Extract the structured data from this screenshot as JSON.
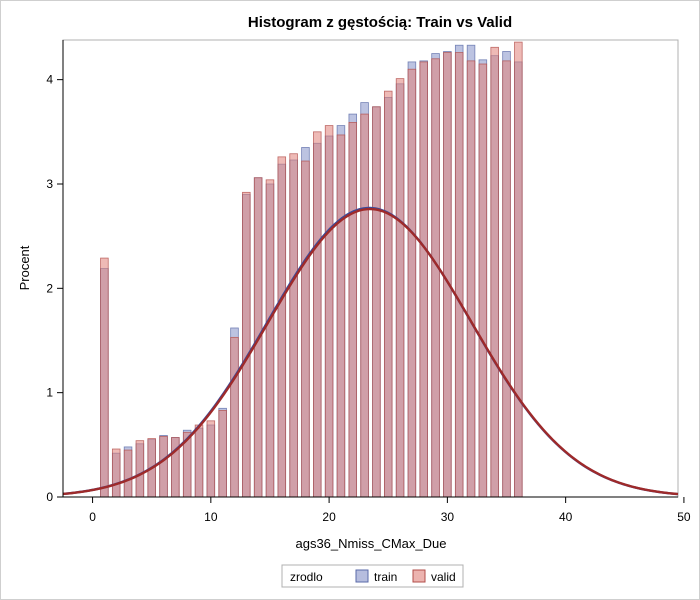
{
  "chart_data": {
    "type": "histogram_with_density",
    "title": "Histogram z gęstością: Train vs Valid",
    "xlabel": "ags36_Nmiss_CMax_Due",
    "ylabel": "Procent",
    "xlim": [
      -2.5,
      49.5
    ],
    "ylim": [
      0,
      4.38
    ],
    "xticks": [
      0,
      10,
      20,
      30,
      40,
      50
    ],
    "yticks": [
      0,
      1,
      2,
      3,
      4
    ],
    "grid": false,
    "legend": {
      "title": "zrodlo",
      "placement": "bottom-center"
    },
    "bin_width": 1,
    "bar_width": 0.65,
    "series": [
      {
        "name": "train",
        "color": "#8591c8",
        "bins": [
          {
            "x": 1,
            "y": 2.19
          },
          {
            "x": 2,
            "y": 0.42
          },
          {
            "x": 3,
            "y": 0.48
          },
          {
            "x": 4,
            "y": 0.51
          },
          {
            "x": 5,
            "y": 0.55
          },
          {
            "x": 6,
            "y": 0.59
          },
          {
            "x": 7,
            "y": 0.57
          },
          {
            "x": 8,
            "y": 0.64
          },
          {
            "x": 9,
            "y": 0.66
          },
          {
            "x": 10,
            "y": 0.69
          },
          {
            "x": 11,
            "y": 0.85
          },
          {
            "x": 12,
            "y": 1.62
          },
          {
            "x": 13,
            "y": 2.9
          },
          {
            "x": 14,
            "y": 3.06
          },
          {
            "x": 15,
            "y": 3.0
          },
          {
            "x": 16,
            "y": 3.19
          },
          {
            "x": 17,
            "y": 3.23
          },
          {
            "x": 18,
            "y": 3.35
          },
          {
            "x": 19,
            "y": 3.39
          },
          {
            "x": 20,
            "y": 3.46
          },
          {
            "x": 21,
            "y": 3.56
          },
          {
            "x": 22,
            "y": 3.67
          },
          {
            "x": 23,
            "y": 3.78
          },
          {
            "x": 24,
            "y": 3.74
          },
          {
            "x": 25,
            "y": 3.83
          },
          {
            "x": 26,
            "y": 3.96
          },
          {
            "x": 27,
            "y": 4.17
          },
          {
            "x": 28,
            "y": 4.18
          },
          {
            "x": 29,
            "y": 4.25
          },
          {
            "x": 30,
            "y": 4.27
          },
          {
            "x": 31,
            "y": 4.33
          },
          {
            "x": 32,
            "y": 4.33
          },
          {
            "x": 33,
            "y": 4.19
          },
          {
            "x": 34,
            "y": 4.23
          },
          {
            "x": 35,
            "y": 4.27
          },
          {
            "x": 36,
            "y": 4.17
          }
        ],
        "density": {
          "type": "normal",
          "mu": 23.4,
          "sigma": 8.6,
          "peak": 2.77
        }
      },
      {
        "name": "valid",
        "color": "#e0817a",
        "bins": [
          {
            "x": 1,
            "y": 2.29
          },
          {
            "x": 2,
            "y": 0.46
          },
          {
            "x": 3,
            "y": 0.45
          },
          {
            "x": 4,
            "y": 0.54
          },
          {
            "x": 5,
            "y": 0.56
          },
          {
            "x": 6,
            "y": 0.58
          },
          {
            "x": 7,
            "y": 0.57
          },
          {
            "x": 8,
            "y": 0.62
          },
          {
            "x": 9,
            "y": 0.69
          },
          {
            "x": 10,
            "y": 0.73
          },
          {
            "x": 11,
            "y": 0.83
          },
          {
            "x": 12,
            "y": 1.53
          },
          {
            "x": 13,
            "y": 2.92
          },
          {
            "x": 14,
            "y": 3.06
          },
          {
            "x": 15,
            "y": 3.04
          },
          {
            "x": 16,
            "y": 3.26
          },
          {
            "x": 17,
            "y": 3.29
          },
          {
            "x": 18,
            "y": 3.22
          },
          {
            "x": 19,
            "y": 3.5
          },
          {
            "x": 20,
            "y": 3.56
          },
          {
            "x": 21,
            "y": 3.47
          },
          {
            "x": 22,
            "y": 3.59
          },
          {
            "x": 23,
            "y": 3.67
          },
          {
            "x": 24,
            "y": 3.74
          },
          {
            "x": 25,
            "y": 3.89
          },
          {
            "x": 26,
            "y": 4.01
          },
          {
            "x": 27,
            "y": 4.1
          },
          {
            "x": 28,
            "y": 4.17
          },
          {
            "x": 29,
            "y": 4.2
          },
          {
            "x": 30,
            "y": 4.26
          },
          {
            "x": 31,
            "y": 4.26
          },
          {
            "x": 32,
            "y": 4.18
          },
          {
            "x": 33,
            "y": 4.15
          },
          {
            "x": 34,
            "y": 4.31
          },
          {
            "x": 35,
            "y": 4.18
          },
          {
            "x": 36,
            "y": 4.36
          }
        ],
        "density": {
          "type": "normal",
          "mu": 23.45,
          "sigma": 8.6,
          "peak": 2.76
        }
      }
    ]
  },
  "colors": {
    "train_fill": "#8591c8",
    "train_stroke": "#5a6aa8",
    "valid_fill": "#e0817a",
    "valid_stroke": "#b24d4a",
    "train_line": "#3b4a9a",
    "valid_line": "#9e2a2a"
  }
}
